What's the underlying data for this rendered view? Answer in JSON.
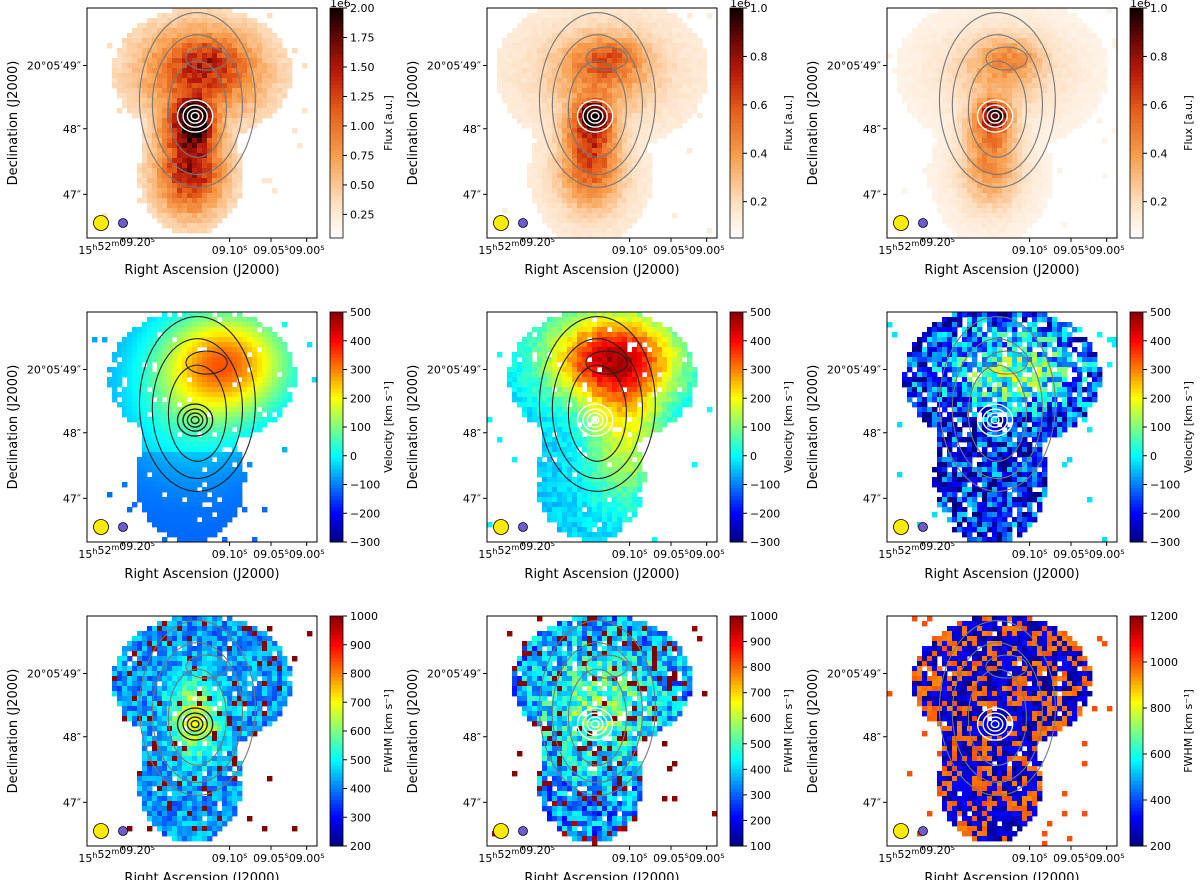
{
  "chart_data": [
    {
      "type": "heatmap",
      "row": "flux",
      "column": 1,
      "cmap": "gist_heat_r",
      "clabel": "Flux [a.u.]",
      "cbar_multiplier": "1e6",
      "cbar_ticks": [
        "0.25",
        "0.50",
        "0.75",
        "1.00",
        "1.25",
        "1.50",
        "1.75",
        "2.00"
      ],
      "crange": [
        0.05,
        2.0
      ],
      "ctick_values": [
        0.25,
        0.5,
        0.75,
        1.0,
        1.25,
        1.5,
        1.75,
        2.0
      ],
      "xlabel": "Right Ascension (J2000)",
      "ylabel": "Declination (J2000)",
      "x_ticks": [
        "09.20s",
        "09.10s",
        "09.05s",
        "09.00s"
      ],
      "x_tick_first": "15h52m09.20s",
      "y_ticks": [
        "20°05′49″",
        "48″",
        "47″"
      ]
    },
    {
      "type": "heatmap",
      "row": "flux",
      "column": 2,
      "cmap": "gist_heat_r",
      "clabel": "Flux [a.u.]",
      "cbar_multiplier": "1e6",
      "cbar_ticks": [
        "0.2",
        "0.4",
        "0.6",
        "0.8",
        "1.0"
      ],
      "crange": [
        0.05,
        1.0
      ],
      "ctick_values": [
        0.2,
        0.4,
        0.6,
        0.8,
        1.0
      ],
      "xlabel": "Right Ascension (J2000)",
      "ylabel": "Declination (J2000)"
    },
    {
      "type": "heatmap",
      "row": "flux",
      "column": 3,
      "cmap": "gist_heat_r",
      "clabel": "Flux [a.u.]",
      "cbar_multiplier": "1e6",
      "cbar_ticks": [
        "0.2",
        "0.4",
        "0.6",
        "0.8",
        "1.0"
      ],
      "crange": [
        0.05,
        1.0
      ],
      "ctick_values": [
        0.2,
        0.4,
        0.6,
        0.8,
        1.0
      ],
      "xlabel": "Right Ascension (J2000)",
      "ylabel": "Declination (J2000)"
    },
    {
      "type": "heatmap",
      "row": "velocity",
      "column": 1,
      "cmap": "jet",
      "clabel": "Velocity [km s⁻¹]",
      "cbar_ticks": [
        "500",
        "400",
        "300",
        "200",
        "100",
        "0",
        "−100",
        "−200",
        "−300"
      ],
      "crange": [
        -300,
        500
      ],
      "ctick_values": [
        500,
        400,
        300,
        200,
        100,
        0,
        -100,
        -200,
        -300
      ],
      "xlabel": "Right Ascension (J2000)",
      "ylabel": "Declination (J2000)"
    },
    {
      "type": "heatmap",
      "row": "velocity",
      "column": 2,
      "cmap": "jet",
      "clabel": "Velocity [km s⁻¹]",
      "cbar_ticks": [
        "500",
        "400",
        "300",
        "200",
        "100",
        "0",
        "−100",
        "−200",
        "−300"
      ],
      "crange": [
        -300,
        500
      ],
      "ctick_values": [
        500,
        400,
        300,
        200,
        100,
        0,
        -100,
        -200,
        -300
      ],
      "xlabel": "Right Ascension (J2000)",
      "ylabel": "Declination (J2000)"
    },
    {
      "type": "heatmap",
      "row": "velocity",
      "column": 3,
      "cmap": "jet",
      "clabel": "Velocity [km s⁻¹]",
      "cbar_ticks": [
        "500",
        "400",
        "300",
        "200",
        "100",
        "0",
        "−100",
        "−200",
        "−300"
      ],
      "crange": [
        -300,
        500
      ],
      "ctick_values": [
        500,
        400,
        300,
        200,
        100,
        0,
        -100,
        -200,
        -300
      ],
      "xlabel": "Right Ascension (J2000)",
      "ylabel": "Declination (J2000)"
    },
    {
      "type": "heatmap",
      "row": "fwhm",
      "column": 1,
      "cmap": "jet",
      "clabel": "FWHM [km s⁻¹]",
      "cbar_ticks": [
        "1000",
        "900",
        "800",
        "700",
        "600",
        "500",
        "400",
        "300",
        "200"
      ],
      "crange": [
        200,
        1000
      ],
      "ctick_values": [
        1000,
        900,
        800,
        700,
        600,
        500,
        400,
        300,
        200
      ],
      "xlabel": "Right Ascension (J2000)",
      "ylabel": "Declination (J2000)"
    },
    {
      "type": "heatmap",
      "row": "fwhm",
      "column": 2,
      "cmap": "jet",
      "clabel": "FWHM [km s⁻¹]",
      "cbar_ticks": [
        "1000",
        "900",
        "800",
        "700",
        "600",
        "500",
        "400",
        "300",
        "200",
        "100"
      ],
      "crange": [
        100,
        1000
      ],
      "ctick_values": [
        1000,
        900,
        800,
        700,
        600,
        500,
        400,
        300,
        200,
        100
      ],
      "xlabel": "Right Ascension (J2000)",
      "ylabel": "Declination (J2000)"
    },
    {
      "type": "heatmap",
      "row": "fwhm",
      "column": 3,
      "cmap": "jet",
      "clabel": "FWHM [km s⁻¹]",
      "cbar_ticks": [
        "1200",
        "1000",
        "800",
        "600",
        "400",
        "200"
      ],
      "crange": [
        200,
        1200
      ],
      "ctick_values": [
        1200,
        1000,
        800,
        600,
        400,
        200
      ],
      "xlabel": "Right Ascension (J2000)",
      "ylabel": "Declination (J2000)"
    }
  ],
  "axes": {
    "xlabel": "Right Ascension (J2000)",
    "ylabel": "Declination (J2000)",
    "x_first": {
      "h": "15",
      "hu": "h",
      "m": "52",
      "mu": "m",
      "s": "09.20",
      "su": "s"
    },
    "x_ticks": [
      {
        "v": "09.10",
        "u": "s"
      },
      {
        "v": "09.05",
        "u": "s"
      },
      {
        "v": "09.00",
        "u": "s"
      }
    ],
    "y_ticks": [
      "20°05′49″",
      "48″",
      "47″"
    ]
  },
  "beams": {
    "large_color": "#ffeb00",
    "small_color": "#6d5bd0"
  },
  "colors": {
    "contour_grey": "#777777",
    "contour_black": "#222222",
    "contour_white": "#ffffff"
  }
}
